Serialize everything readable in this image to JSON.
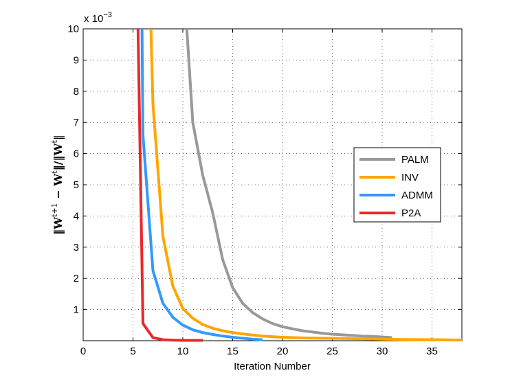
{
  "chart_data": {
    "type": "line",
    "xlabel": "Iteration Number",
    "ylabel": "‖W^{t+1} − W^t‖ / ‖W^t‖",
    "ylabel_parts": {
      "num_open": "‖W",
      "num_sup": "t+1",
      "minus": " − W",
      "sup2": "t",
      "mid": "‖/‖W",
      "sup3": "t",
      "close": "‖"
    },
    "y_multiplier": "x 10",
    "y_multiplier_exp": "−3",
    "xlim": [
      0,
      38
    ],
    "ylim": [
      0,
      10
    ],
    "x_ticks": [
      0,
      5,
      10,
      15,
      20,
      25,
      30,
      35
    ],
    "y_ticks": [
      1,
      2,
      3,
      4,
      5,
      6,
      7,
      8,
      9,
      10
    ],
    "grid": true,
    "legend_position": "right",
    "series": [
      {
        "name": "PALM",
        "color": "#999999",
        "points": [
          [
            10.4,
            10
          ],
          [
            11,
            7
          ],
          [
            12,
            5.3
          ],
          [
            13,
            4.1
          ],
          [
            14,
            2.6
          ],
          [
            15,
            1.7
          ],
          [
            16,
            1.2
          ],
          [
            17,
            0.9
          ],
          [
            18,
            0.7
          ],
          [
            19,
            0.55
          ],
          [
            20,
            0.45
          ],
          [
            21,
            0.38
          ],
          [
            22,
            0.32
          ],
          [
            23,
            0.28
          ],
          [
            24,
            0.24
          ],
          [
            25,
            0.21
          ],
          [
            26,
            0.19
          ],
          [
            27,
            0.17
          ],
          [
            28,
            0.15
          ],
          [
            29,
            0.14
          ],
          [
            30,
            0.12
          ],
          [
            31,
            0.1
          ]
        ]
      },
      {
        "name": "INV",
        "color": "#FFA500",
        "points": [
          [
            6.8,
            10
          ],
          [
            7,
            7.6
          ],
          [
            8,
            3.35
          ],
          [
            9,
            1.75
          ],
          [
            10,
            1.03
          ],
          [
            11,
            0.72
          ],
          [
            12,
            0.52
          ],
          [
            13,
            0.4
          ],
          [
            14,
            0.32
          ],
          [
            15,
            0.26
          ],
          [
            16,
            0.22
          ],
          [
            17,
            0.18
          ],
          [
            18,
            0.15
          ],
          [
            19,
            0.13
          ],
          [
            20,
            0.11
          ],
          [
            22,
            0.09
          ],
          [
            24,
            0.08
          ],
          [
            26,
            0.07
          ],
          [
            28,
            0.06
          ],
          [
            30,
            0.05
          ],
          [
            32,
            0.04
          ],
          [
            34,
            0.035
          ],
          [
            36,
            0.03
          ],
          [
            38,
            0.02
          ]
        ]
      },
      {
        "name": "ADMM",
        "color": "#3399FF",
        "points": [
          [
            5.9,
            10
          ],
          [
            6,
            6.6
          ],
          [
            7,
            2.25
          ],
          [
            8,
            1.2
          ],
          [
            9,
            0.75
          ],
          [
            10,
            0.5
          ],
          [
            11,
            0.35
          ],
          [
            12,
            0.26
          ],
          [
            13,
            0.2
          ],
          [
            14,
            0.15
          ],
          [
            15,
            0.11
          ],
          [
            16,
            0.08
          ],
          [
            17,
            0.05
          ],
          [
            18,
            0.03
          ]
        ]
      },
      {
        "name": "P2A",
        "color": "#E8282B",
        "points": [
          [
            5.5,
            10
          ],
          [
            6,
            0.55
          ],
          [
            7,
            0.1
          ],
          [
            8,
            0.03
          ],
          [
            9,
            0.02
          ],
          [
            10,
            0.01
          ],
          [
            11,
            0.01
          ],
          [
            12,
            0.01
          ]
        ]
      }
    ]
  }
}
